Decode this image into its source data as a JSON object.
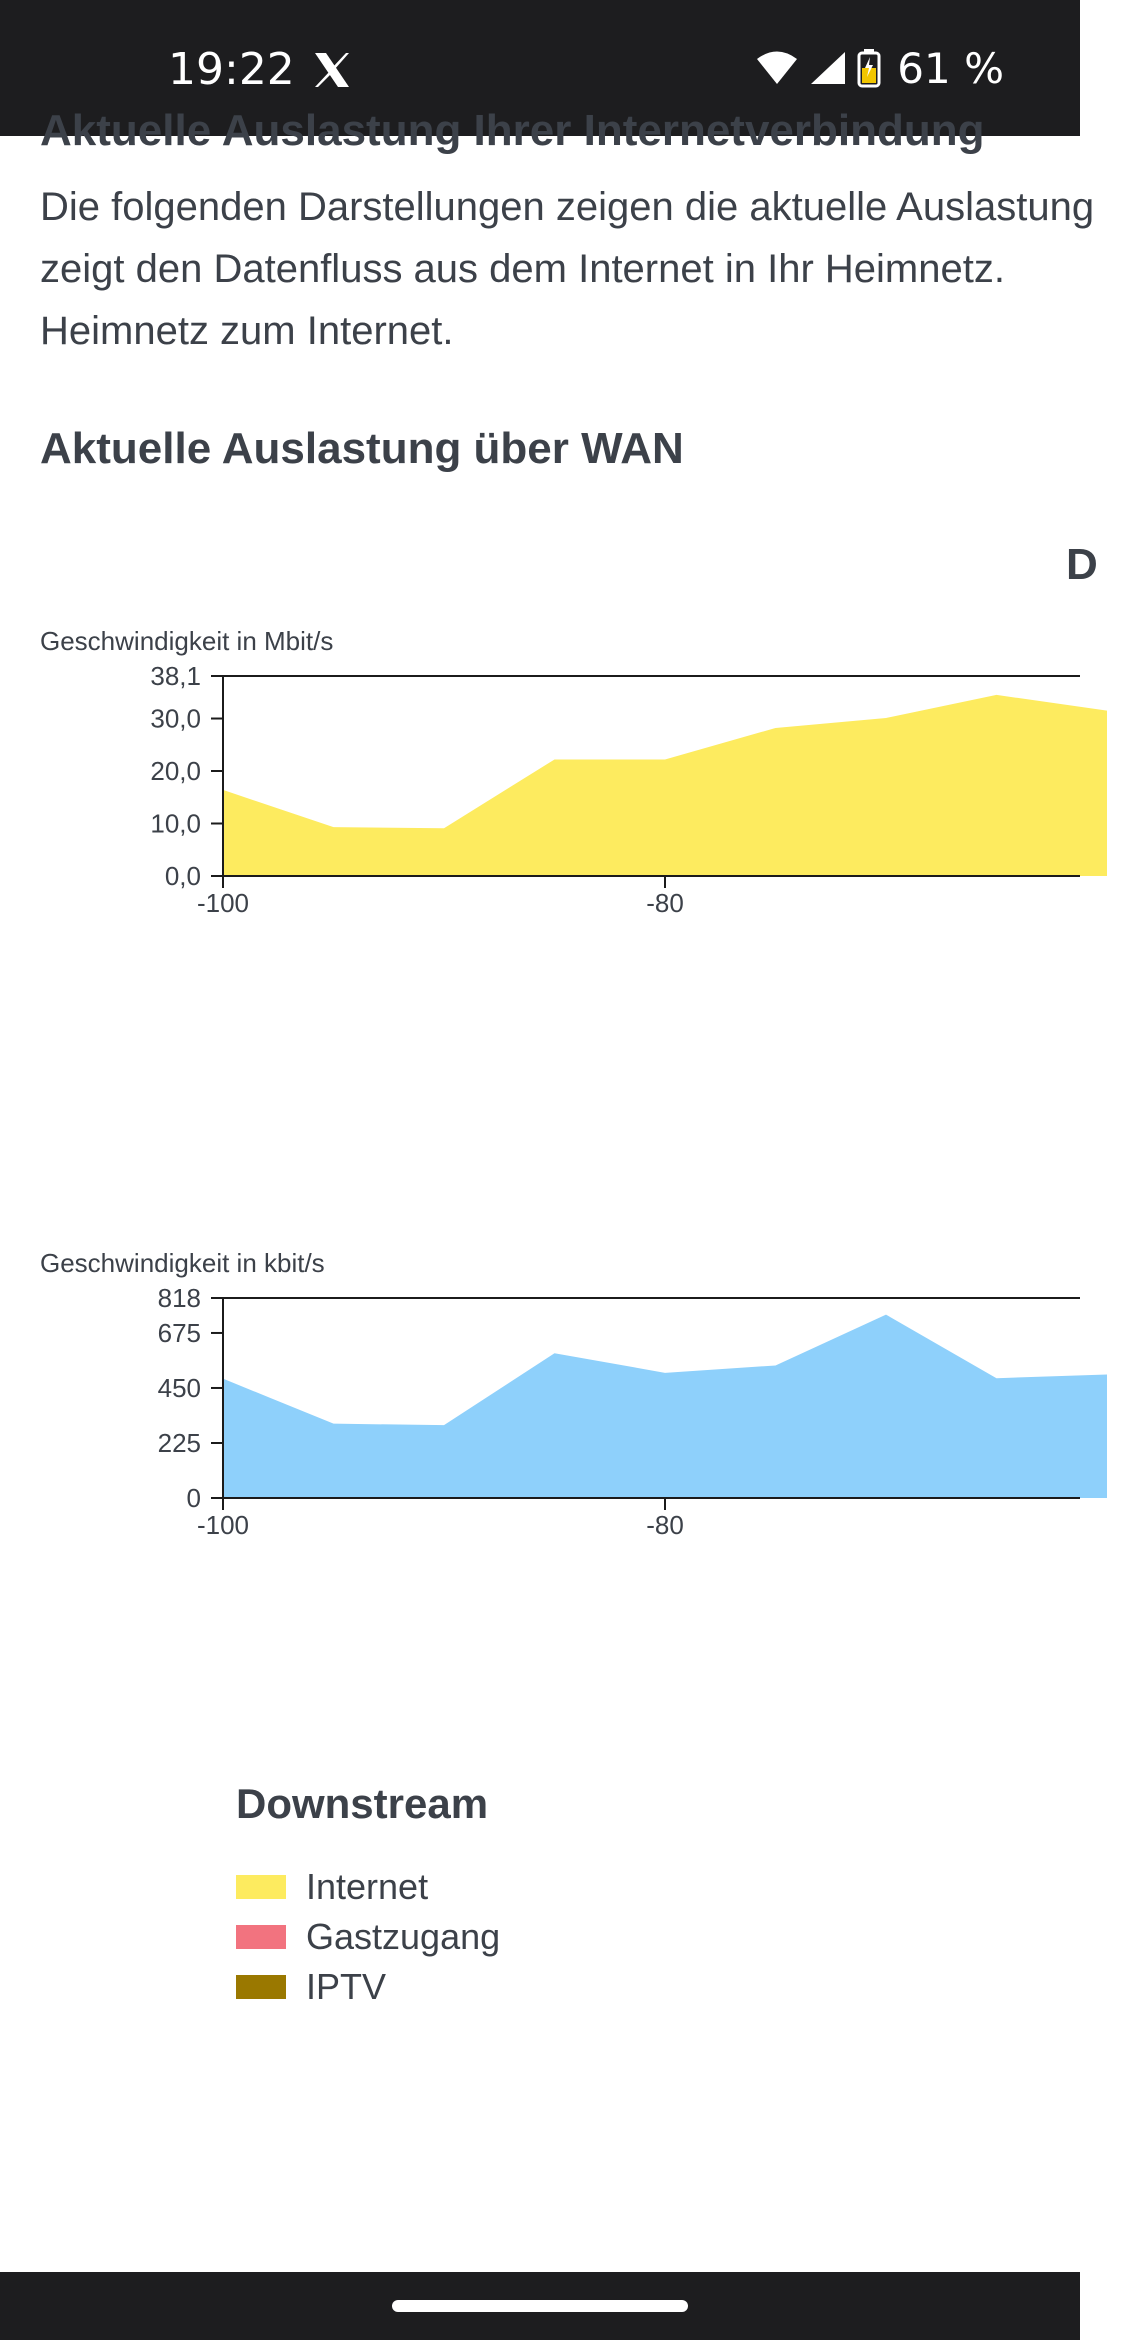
{
  "status_bar": {
    "time": "19:22",
    "battery_percent": "61 %",
    "icons": [
      "x-logo-icon",
      "wifi-icon",
      "signal-icon",
      "battery-icon"
    ]
  },
  "page": {
    "cut_heading": "Aktuelle Auslastung Ihrer Internetverbindung",
    "intro": "Die folgenden Darstellungen zeigen die aktuelle Auslastung\nzeigt den Datenfluss aus dem Internet in Ihr Heimnetz.\nHeimnetz zum Internet.",
    "section_title": "Aktuelle Auslastung über WAN",
    "cut_letter": "D"
  },
  "chart_data": [
    {
      "type": "area",
      "title": "",
      "ylabel": "Geschwindigkeit in Mbit/s",
      "xlabel": "",
      "x": [
        -100,
        -95,
        -90,
        -85,
        -80,
        -75,
        -70,
        -65,
        -60
      ],
      "series": [
        {
          "name": "Internet",
          "values": [
            16.4,
            9.3,
            9.1,
            22.2,
            22.2,
            28.2,
            30.1,
            34.5,
            31.5
          ]
        }
      ],
      "ylim": [
        0,
        38.1
      ],
      "yticks": [
        0,
        10,
        20,
        30,
        38.1
      ],
      "ytick_labels": [
        "0,0",
        "10,0",
        "20,0",
        "30,0",
        "38,1"
      ],
      "xticks": [
        -100,
        -80
      ],
      "xtick_labels": [
        "-100",
        "-80"
      ],
      "color": "#fdeb5f"
    },
    {
      "type": "area",
      "title": "",
      "ylabel": "Geschwindigkeit in kbit/s",
      "xlabel": "",
      "x": [
        -100,
        -95,
        -90,
        -85,
        -80,
        -75,
        -70,
        -65,
        -60
      ],
      "series": [
        {
          "values": [
            488,
            304,
            298,
            592,
            512,
            542,
            750,
            490,
            505
          ]
        }
      ],
      "ylim": [
        0,
        818
      ],
      "yticks": [
        0,
        225,
        450,
        675,
        818
      ],
      "ytick_labels": [
        "0",
        "225",
        "450",
        "675",
        "818"
      ],
      "xticks": [
        -100,
        -80
      ],
      "xtick_labels": [
        "-100",
        "-80"
      ],
      "color": "#8ed0fb"
    }
  ],
  "legend": {
    "title": "Downstream",
    "items": [
      {
        "label": "Internet",
        "color": "#fdeb5f"
      },
      {
        "label": "Gastzugang",
        "color": "#f2737f"
      },
      {
        "label": "IPTV",
        "color": "#9a7800"
      }
    ]
  }
}
